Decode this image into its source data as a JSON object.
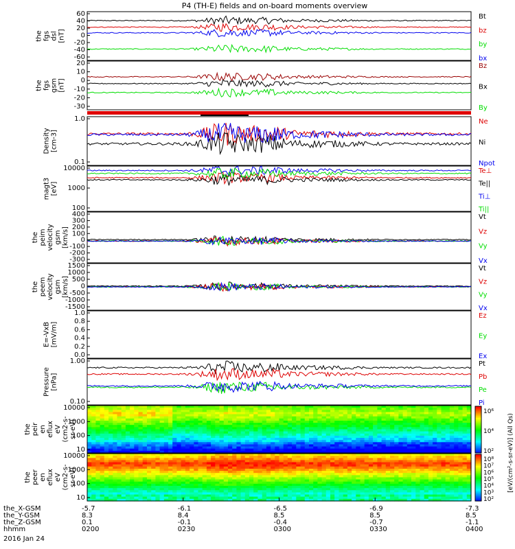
{
  "title": "P4 (TH-E) fields and on-board moments overview",
  "x_ticks": [
    "0200",
    "0230",
    "0300",
    "0330",
    "0400"
  ],
  "ephemeris": [
    {
      "label": "the_X-GSM",
      "values": [
        "-5.7",
        "-6.1",
        "-6.5",
        "-6.9",
        "-7.3"
      ]
    },
    {
      "label": "the_Y-GSM",
      "values": [
        "8.3",
        "8.4",
        "8.5",
        "8.5",
        "8.5"
      ]
    },
    {
      "label": "the_Z-GSM",
      "values": [
        "0.1",
        "-0.1",
        "-0.4",
        "-0.7",
        "-1.1"
      ]
    },
    {
      "label": "hhmm",
      "values": [
        "0200",
        "0230",
        "0300",
        "0330",
        "0400"
      ]
    }
  ],
  "date": "2016 Jan 24",
  "colorbar_label": "[eV/(cm²-s-sr-eV)] (All Qs)",
  "colorbar1_ticks": [
    "10⁶",
    "10⁴",
    "10²"
  ],
  "colorbar2_ticks": [
    "10⁸",
    "10⁷",
    "10⁶",
    "10⁵",
    "10⁴",
    "10³",
    "10²"
  ],
  "colors": {
    "black": "#000000",
    "red": "#dd0000",
    "green": "#00dd00",
    "blue": "#0000ee",
    "darkred": "#990000"
  },
  "chart_data": [
    {
      "type": "line",
      "panel": "fgs_dsl",
      "ylabel": [
        "the",
        "fgs",
        "dsl",
        "[nT]"
      ],
      "ylim": [
        -60,
        60
      ],
      "yticks": [
        "60",
        "40",
        "20",
        "0",
        "-20",
        "-40",
        "-60"
      ],
      "legend": [
        {
          "label": "Bt",
          "color": "black"
        },
        {
          "label": "bz",
          "color": "red"
        },
        {
          "label": "by",
          "color": "green"
        },
        {
          "label": "bx",
          "color": "blue"
        }
      ],
      "series": [
        {
          "name": "Bt",
          "level": 38
        },
        {
          "name": "bz",
          "level": 22
        },
        {
          "name": "by",
          "level": -32
        },
        {
          "name": "bx",
          "level": 8
        }
      ]
    },
    {
      "type": "line",
      "panel": "fgs_gsm",
      "ylabel": [
        "the",
        "fgs",
        "gsm",
        "[nT]"
      ],
      "ylim": [
        -35,
        30
      ],
      "yticks": [
        "20",
        "10",
        "0",
        "-10",
        "-20",
        "-30"
      ],
      "legend": [
        {
          "label": "Bz",
          "color": "darkred"
        },
        {
          "label": "Bx",
          "color": "black"
        },
        {
          "label": "By",
          "color": "green"
        }
      ],
      "series": [
        {
          "name": "Bz",
          "level": 9
        },
        {
          "name": "Bx",
          "level": 0
        },
        {
          "name": "By",
          "level": -12
        }
      ]
    },
    {
      "type": "line",
      "panel": "density",
      "ylabel": [
        "Density",
        "[cm-3]"
      ],
      "scale": "log",
      "ylim": [
        0.1,
        1.2
      ],
      "yticks": [
        "1.0",
        "0.1"
      ],
      "legend": [
        {
          "label": "Ne",
          "color": "red"
        },
        {
          "label": "Ni",
          "color": "black"
        },
        {
          "label": "Npot",
          "color": "blue"
        }
      ],
      "series": [
        {
          "name": "Ne",
          "level": 0.5
        },
        {
          "name": "Ni",
          "level": 0.3
        },
        {
          "name": "Npot",
          "level": 0.48
        }
      ]
    },
    {
      "type": "line",
      "panel": "temperature",
      "ylabel": [
        "magt3",
        "[eV]"
      ],
      "scale": "log",
      "ylim": [
        100,
        12000
      ],
      "yticks": [
        "10000",
        "1000",
        "100"
      ],
      "legend": [
        {
          "label": "Te⊥",
          "color": "red"
        },
        {
          "label": "Te||",
          "color": "black"
        },
        {
          "label": "Ti⊥",
          "color": "blue"
        },
        {
          "label": "Ti||",
          "color": "green"
        }
      ],
      "series": [
        {
          "name": "Te⊥",
          "level": 3500
        },
        {
          "name": "Te||",
          "level": 2800
        },
        {
          "name": "Ti⊥",
          "level": 7500
        },
        {
          "name": "Ti||",
          "level": 5500
        }
      ]
    },
    {
      "type": "line",
      "panel": "peim_velocity",
      "ylabel": [
        "the",
        "peim",
        "velocity",
        "gsm",
        "[km/s]"
      ],
      "ylim": [
        -300,
        400
      ],
      "yticks": [
        "400",
        "300",
        "200",
        "100",
        "0",
        "-100",
        "-200",
        "-300"
      ],
      "legend": [
        {
          "label": "Vt",
          "color": "black"
        },
        {
          "label": "Vz",
          "color": "red"
        },
        {
          "label": "Vy",
          "color": "green"
        },
        {
          "label": "Vx",
          "color": "blue"
        }
      ],
      "series": [
        {
          "name": "Vt",
          "level": 20
        },
        {
          "name": "Vz",
          "level": 0
        },
        {
          "name": "Vy",
          "level": 0
        },
        {
          "name": "Vx",
          "level": 0
        }
      ]
    },
    {
      "type": "line",
      "panel": "peem_velocity",
      "ylabel": [
        "the",
        "peem",
        "velocity",
        "gsm",
        "[km/s]"
      ],
      "ylim": [
        -1500,
        1500
      ],
      "yticks": [
        "1500",
        "1000",
        "500",
        "0",
        "-500",
        "-1000",
        "-1500"
      ],
      "legend": [
        {
          "label": "Vt",
          "color": "black"
        },
        {
          "label": "Vz",
          "color": "red"
        },
        {
          "label": "Vy",
          "color": "green"
        },
        {
          "label": "Vx",
          "color": "blue"
        }
      ],
      "series": [
        {
          "name": "Vt",
          "level": 50
        },
        {
          "name": "Vz",
          "level": 0
        },
        {
          "name": "Vy",
          "level": 0
        },
        {
          "name": "Vx",
          "level": 0
        }
      ]
    },
    {
      "type": "line",
      "panel": "efield",
      "ylabel": [
        "E=-VxB",
        "[mV/m]"
      ],
      "ylim": [
        0,
        1
      ],
      "yticks": [
        "1.0",
        "0.8",
        "0.6",
        "0.4",
        "0.2",
        "0.0"
      ],
      "legend": [
        {
          "label": "Ez",
          "color": "red"
        },
        {
          "label": "Ey",
          "color": "green"
        },
        {
          "label": "Ex",
          "color": "blue"
        }
      ],
      "series": []
    },
    {
      "type": "line",
      "panel": "pressure",
      "ylabel": [
        "Pressure",
        "[nPa]"
      ],
      "scale": "log",
      "ylim": [
        0.03,
        2
      ],
      "yticks": [
        "1.00",
        "0.10"
      ],
      "legend": [
        {
          "label": "Pt",
          "color": "black"
        },
        {
          "label": "Pb",
          "color": "red"
        },
        {
          "label": "Pe",
          "color": "green"
        },
        {
          "label": "Pi",
          "color": "blue"
        }
      ],
      "series": [
        {
          "name": "Pt",
          "level": 0.9
        },
        {
          "name": "Pb",
          "level": 0.5
        },
        {
          "name": "Pe",
          "level": 0.15
        },
        {
          "name": "Pi",
          "level": 0.17
        }
      ]
    },
    {
      "type": "heatmap",
      "panel": "peir_eflux",
      "ylabel": [
        "the",
        "peir",
        "en",
        "eflux",
        "eV",
        "(cm2-s-",
        "sr-eV)"
      ],
      "scale": "log",
      "ylim": [
        5,
        20000
      ],
      "yticks": [
        "10000",
        "1000",
        "100",
        "10"
      ]
    },
    {
      "type": "heatmap",
      "panel": "peer_eflux",
      "ylabel": [
        "the",
        "peer",
        "en",
        "eflux",
        "eV",
        "(cm2-s-",
        "sr-eV)"
      ],
      "scale": "log",
      "ylim": [
        5,
        20000
      ],
      "yticks": [
        "10000",
        "1000",
        "100",
        "10"
      ]
    }
  ]
}
